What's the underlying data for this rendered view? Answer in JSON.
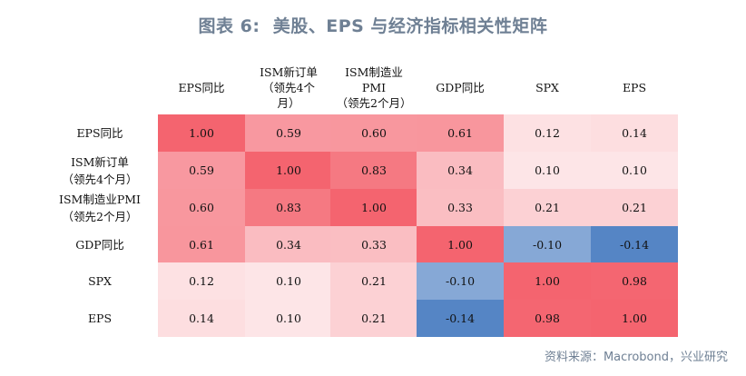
{
  "title": {
    "label": "图表 6:",
    "text": "美股、EPS 与经济指标相关性矩阵"
  },
  "chart_data": {
    "type": "heatmap",
    "title": "图表 6:美股、EPS 与经济指标相关性矩阵",
    "columns": [
      "EPS同比",
      "ISM新订单\n（领先4个\n月）",
      "ISM制造业\nPMI\n（领先2个月）",
      "GDP同比",
      "SPX",
      "EPS"
    ],
    "rows": [
      "EPS同比",
      "ISM新订单\n（领先4个月）",
      "ISM制造业PMI\n（领先2个月）",
      "GDP同比",
      "SPX",
      "EPS"
    ],
    "values": [
      [
        1.0,
        0.59,
        0.6,
        0.61,
        0.12,
        0.14
      ],
      [
        0.59,
        1.0,
        0.83,
        0.34,
        0.1,
        0.1
      ],
      [
        0.6,
        0.83,
        1.0,
        0.33,
        0.21,
        0.21
      ],
      [
        0.61,
        0.34,
        0.33,
        1.0,
        -0.1,
        -0.14
      ],
      [
        0.12,
        0.1,
        0.21,
        -0.1,
        1.0,
        0.98
      ],
      [
        0.14,
        0.1,
        0.21,
        -0.14,
        0.98,
        1.0
      ]
    ],
    "color_scale": {
      "positive": "#f4646f",
      "neutral": "#ffffff",
      "negative": "#5585c5"
    }
  },
  "source": "资料来源：Macrobond，兴业研究"
}
